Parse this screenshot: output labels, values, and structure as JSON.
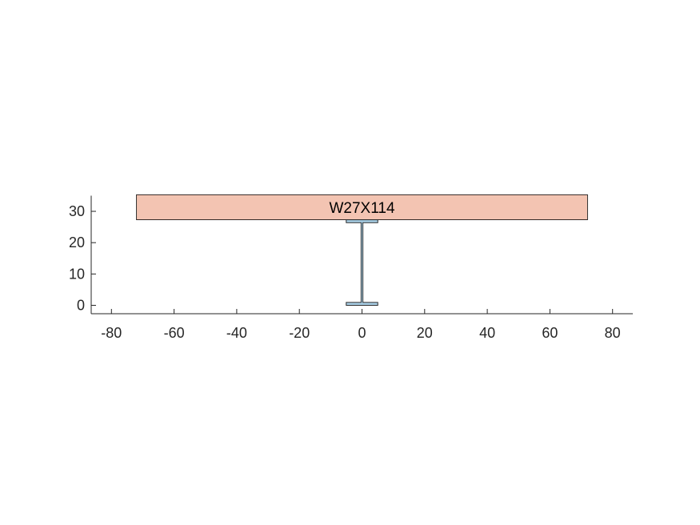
{
  "chart_data": {
    "type": "cross-section",
    "section_label": "W27X114",
    "xlim": [
      -80,
      80
    ],
    "ylim": [
      -2,
      35
    ],
    "x_ticks": [
      -80,
      -60,
      -40,
      -20,
      0,
      20,
      40,
      60,
      80
    ],
    "y_ticks": [
      0,
      10,
      20,
      30
    ],
    "x_tick_labels": [
      "-80",
      "-60",
      "-40",
      "-20",
      "0",
      "20",
      "40",
      "60",
      "80"
    ],
    "y_tick_labels": [
      "0",
      "10",
      "20",
      "30"
    ],
    "steel_beam": {
      "depth": 27.3,
      "flange_width": 10.07,
      "flange_thickness": 0.93,
      "web_thickness": 0.57,
      "fill_color": "#a9cfe6",
      "stroke_color": "#2b2b2b"
    },
    "concrete_slab": {
      "x_range": [
        -72,
        72
      ],
      "y_range": [
        27.3,
        35.3
      ],
      "fill_color": "#f3c4b2",
      "stroke_color": "#000000"
    }
  }
}
